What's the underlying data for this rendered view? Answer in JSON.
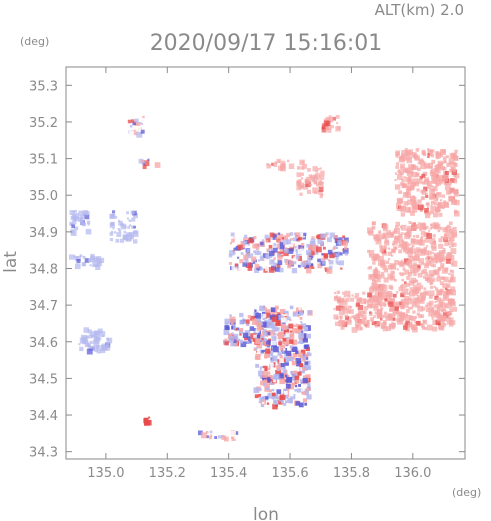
{
  "header": {
    "altitude_label": "ALT(km)  2.0",
    "timestamp": "2020/09/17 15:16:01"
  },
  "chart_data": {
    "type": "heatmap",
    "title": "2020/09/17 15:16:01",
    "xlabel": "lon",
    "ylabel": "lat",
    "x_unit": "(deg)",
    "y_unit": "(deg)",
    "xlim": [
      134.87,
      136.17
    ],
    "ylim": [
      34.28,
      35.35
    ],
    "x_ticks": [
      135.0,
      135.2,
      135.4,
      135.6,
      135.8,
      136.0
    ],
    "x_tick_labels": [
      "135.0",
      "135.2",
      "135.4",
      "135.6",
      "135.8",
      "136.0"
    ],
    "y_ticks": [
      34.3,
      34.4,
      34.5,
      34.6,
      34.7,
      34.8,
      34.9,
      35.0,
      35.1,
      35.2,
      35.3
    ],
    "y_tick_labels": [
      "34.3",
      "34.4",
      "34.5",
      "34.6",
      "34.7",
      "34.8",
      "34.9",
      "35.0",
      "35.1",
      "35.2",
      "35.3"
    ],
    "grid": false,
    "legend": "none",
    "colors": {
      "positive": "#f7a6a6",
      "positive_strong": "#e84a4a",
      "negative": "#b4b8ee",
      "negative_strong": "#5a5ad6",
      "axis": "#8a8a8a"
    },
    "echo_regions": [
      {
        "lon": [
          135.94,
          136.14
        ],
        "lat": [
          34.95,
          35.13
        ],
        "sign": "positive",
        "intensity": 0.45
      },
      {
        "lon": [
          135.85,
          136.13
        ],
        "lat": [
          34.64,
          34.93
        ],
        "sign": "positive",
        "intensity": 0.4
      },
      {
        "lon": [
          135.74,
          135.86
        ],
        "lat": [
          34.64,
          34.74
        ],
        "sign": "positive",
        "intensity": 0.35
      },
      {
        "lon": [
          135.62,
          135.7
        ],
        "lat": [
          35.0,
          35.08
        ],
        "sign": "positive",
        "intensity": 0.35
      },
      {
        "lon": [
          135.48,
          135.66
        ],
        "lat": [
          34.43,
          34.7
        ],
        "sign": "mixed",
        "intensity": 0.8
      },
      {
        "lon": [
          135.38,
          135.6
        ],
        "lat": [
          34.6,
          34.68
        ],
        "sign": "mixed",
        "intensity": 0.7
      },
      {
        "lon": [
          135.4,
          135.78
        ],
        "lat": [
          34.8,
          34.9
        ],
        "sign": "mixed",
        "intensity": 0.6
      },
      {
        "lon": [
          134.87,
          134.98
        ],
        "lat": [
          34.81,
          34.84
        ],
        "sign": "negative",
        "intensity": 0.4
      },
      {
        "lon": [
          134.88,
          134.94
        ],
        "lat": [
          34.9,
          34.96
        ],
        "sign": "negative",
        "intensity": 0.4
      },
      {
        "lon": [
          134.91,
          135.01
        ],
        "lat": [
          34.58,
          34.64
        ],
        "sign": "negative",
        "intensity": 0.4
      },
      {
        "lon": [
          135.01,
          135.09
        ],
        "lat": [
          34.88,
          34.96
        ],
        "sign": "negative",
        "intensity": 0.35
      },
      {
        "lon": [
          135.07,
          135.12
        ],
        "lat": [
          35.17,
          35.22
        ],
        "sign": "mixed",
        "intensity": 0.5
      },
      {
        "lon": [
          135.1,
          135.16
        ],
        "lat": [
          35.08,
          35.1
        ],
        "sign": "mixed",
        "intensity": 0.5
      },
      {
        "lon": [
          135.7,
          135.76
        ],
        "lat": [
          35.18,
          35.22
        ],
        "sign": "positive",
        "intensity": 0.3
      },
      {
        "lon": [
          135.52,
          135.64
        ],
        "lat": [
          35.08,
          35.1
        ],
        "sign": "positive",
        "intensity": 0.3
      },
      {
        "lon": [
          135.3,
          135.42
        ],
        "lat": [
          34.34,
          34.36
        ],
        "sign": "mixed",
        "intensity": 0.5
      },
      {
        "lon": [
          135.12,
          135.14
        ],
        "lat": [
          34.38,
          34.4
        ],
        "sign": "positive_strong",
        "intensity": 0.9
      }
    ]
  }
}
